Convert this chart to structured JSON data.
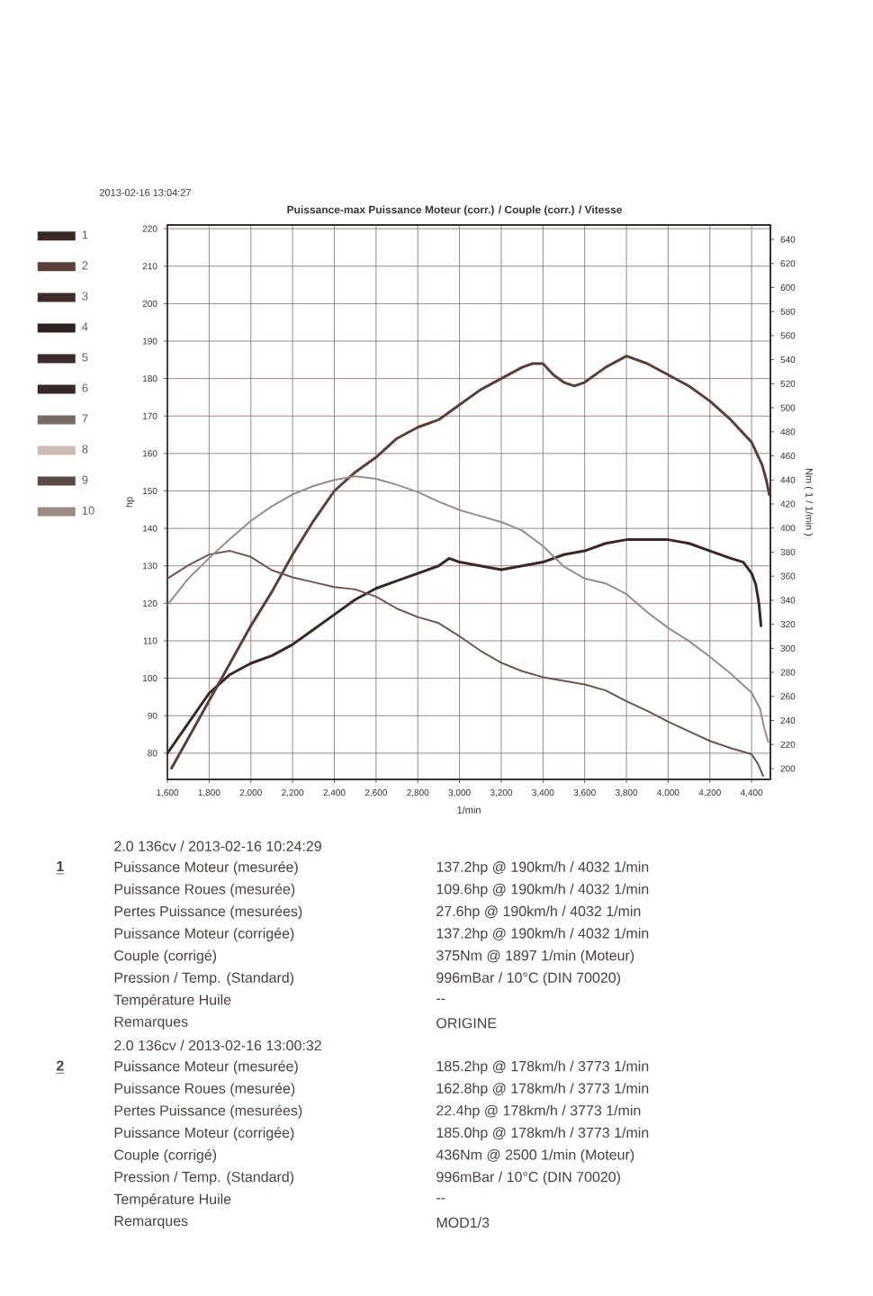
{
  "chart_data": {
    "type": "line",
    "title": "Puissance-max Puissance Moteur (corr.) / Couple (corr.) / Vitesse",
    "xlabel": "1/min",
    "ylabel": "hp",
    "y2label": "Nm ( 1 / 1/min )",
    "xlim": [
      1600,
      4490
    ],
    "xticks": [
      {
        "value": 1600,
        "label": "1,600"
      },
      {
        "value": 1800,
        "label": "1,800"
      },
      {
        "value": 2000,
        "label": "2,000"
      },
      {
        "value": 2200,
        "label": "2,200"
      },
      {
        "value": 2400,
        "label": "2,400"
      },
      {
        "value": 2600,
        "label": "2,600"
      },
      {
        "value": 2800,
        "label": "2,800"
      },
      {
        "value": 3000,
        "label": "3,000"
      },
      {
        "value": 3200,
        "label": "3,200"
      },
      {
        "value": 3400,
        "label": "3,400"
      },
      {
        "value": 3600,
        "label": "3,600"
      },
      {
        "value": 3800,
        "label": "3,800"
      },
      {
        "value": 4000,
        "label": "4,000"
      },
      {
        "value": 4200,
        "label": "4,200"
      },
      {
        "value": 4400,
        "label": "4,400"
      }
    ],
    "ylim": [
      73,
      221
    ],
    "yticks": [
      80,
      90,
      100,
      110,
      120,
      130,
      140,
      150,
      160,
      170,
      180,
      190,
      200,
      210,
      220
    ],
    "y2lim": [
      191,
      652
    ],
    "y2ticks": [
      200,
      220,
      240,
      260,
      280,
      300,
      320,
      340,
      360,
      380,
      400,
      420,
      440,
      460,
      480,
      500,
      520,
      540,
      560,
      580,
      600,
      620,
      640
    ],
    "grid": true,
    "legend": "left",
    "series": [
      {
        "name": "1",
        "color": "#3a2826",
        "x": [
          1600,
          1700,
          1800,
          1900,
          2000,
          2100,
          2200,
          2300,
          2400,
          2500,
          2600,
          2700,
          2800,
          2900,
          2950,
          3000,
          3100,
          3200,
          3300,
          3400,
          3500,
          3600,
          3700,
          3800,
          3900,
          4000,
          4100,
          4200,
          4300,
          4360,
          4400,
          4420,
          4435,
          4445
        ],
        "values": [
          80,
          88,
          96,
          101,
          104,
          106,
          109,
          113,
          117,
          121,
          124,
          126,
          128,
          130,
          132,
          131,
          130,
          129,
          130,
          131,
          133,
          134,
          136,
          137,
          137,
          137,
          136,
          134,
          132,
          131,
          128,
          125,
          120,
          114
        ]
      },
      {
        "name": "2",
        "color": "#5a3f3a",
        "x": [
          1620,
          1700,
          1800,
          1900,
          2000,
          2100,
          2200,
          2300,
          2400,
          2500,
          2600,
          2700,
          2800,
          2900,
          3000,
          3100,
          3200,
          3300,
          3350,
          3400,
          3450,
          3500,
          3550,
          3600,
          3700,
          3800,
          3900,
          4000,
          4100,
          4200,
          4300,
          4400,
          4450,
          4470,
          4485
        ],
        "values": [
          76,
          84,
          94,
          104,
          114,
          123,
          133,
          142,
          150,
          155,
          159,
          164,
          167,
          169,
          173,
          177,
          180,
          183,
          184,
          184,
          181,
          179,
          178,
          179,
          183,
          186,
          184,
          181,
          178,
          174,
          169,
          163,
          157,
          153,
          149
        ]
      },
      {
        "color": "#6e5450",
        "axis": "y2",
        "x": [
          1600,
          1700,
          1800,
          1900,
          2000,
          2100,
          2200,
          2300,
          2400,
          2500,
          2600,
          2700,
          2800,
          2900,
          3000,
          3100,
          3200,
          3300,
          3400,
          3500,
          3600,
          3700,
          3800,
          3900,
          4000,
          4100,
          4200,
          4300,
          4400,
          4430,
          4455
        ],
        "values": [
          358,
          369,
          378,
          381,
          376,
          365,
          359,
          355,
          351,
          349,
          343,
          333,
          326,
          321,
          310,
          298,
          288,
          281,
          276,
          273,
          270,
          265,
          256,
          248,
          239,
          231,
          223,
          217,
          212,
          204,
          194
        ]
      },
      {
        "color": "#9a8a88",
        "axis": "y2",
        "x": [
          1600,
          1700,
          1800,
          1900,
          2000,
          2100,
          2200,
          2300,
          2400,
          2500,
          2600,
          2700,
          2800,
          2900,
          3000,
          3100,
          3200,
          3300,
          3400,
          3500,
          3600,
          3700,
          3800,
          3900,
          4000,
          4100,
          4200,
          4300,
          4400,
          4440,
          4460,
          4480
        ],
        "values": [
          336,
          358,
          375,
          391,
          406,
          418,
          428,
          435,
          440,
          443,
          441,
          436,
          430,
          422,
          415,
          410,
          405,
          398,
          385,
          368,
          358,
          354,
          345,
          330,
          317,
          306,
          293,
          279,
          263,
          250,
          234,
          222
        ]
      },
      {
        "name": "3",
        "color": "#3d2e2b"
      },
      {
        "name": "4",
        "color": "#2e2220"
      },
      {
        "name": "5",
        "color": "#3a2d2b"
      },
      {
        "name": "6",
        "color": "#352826"
      },
      {
        "name": "7",
        "color": "#7a6a66"
      },
      {
        "name": "8",
        "color": "#cbbdb6"
      },
      {
        "name": "9",
        "color": "#5a4a46"
      },
      {
        "name": "10",
        "color": "#9c8a86"
      }
    ],
    "annotations": [
      "2013-02-16 13:04:27",
      "1",
      "2.0 136cv / 2013-02-16 10:24:29",
      "Puissance Moteur (mesurée)",
      "137.2hp @ 190km/h / 4032 1/min",
      "Puissance Roues (mesurée)",
      "109.6hp @ 190km/h / 4032 1/min",
      "Pertes Puissance (mesurées)",
      "27.6hp @ 190km/h / 4032 1/min",
      "Puissance Moteur (corrigée)",
      "137.2hp @ 190km/h / 4032 1/min",
      "Couple (corrigé)",
      "375Nm @ 1897 1/min (Moteur)",
      "Pression / Temp. (Standard)",
      "996mBar / 10°C  (DIN 70020)",
      "Température Huile",
      "--",
      "Remarques",
      "ORIGINE",
      "2",
      "2.0 136cv / 2013-02-16 13:00:32",
      "Puissance Moteur (mesurée)",
      "185.2hp @ 178km/h / 3773 1/min",
      "Puissance Roues (mesurée)",
      "162.8hp @ 178km/h / 3773 1/min",
      "Pertes Puissance (mesurées)",
      "22.4hp @ 178km/h / 3773 1/min",
      "Puissance Moteur (corrigée)",
      "185.0hp @ 178km/h / 3773 1/min",
      "Couple (corrigé)",
      "436Nm @ 2500 1/min (Moteur)",
      "Pression / Temp. (Standard)",
      "996mBar / 10°C  (DIN 70020)",
      "Température Huile",
      "--",
      "Remarques",
      "MOD1/3"
    ]
  }
}
